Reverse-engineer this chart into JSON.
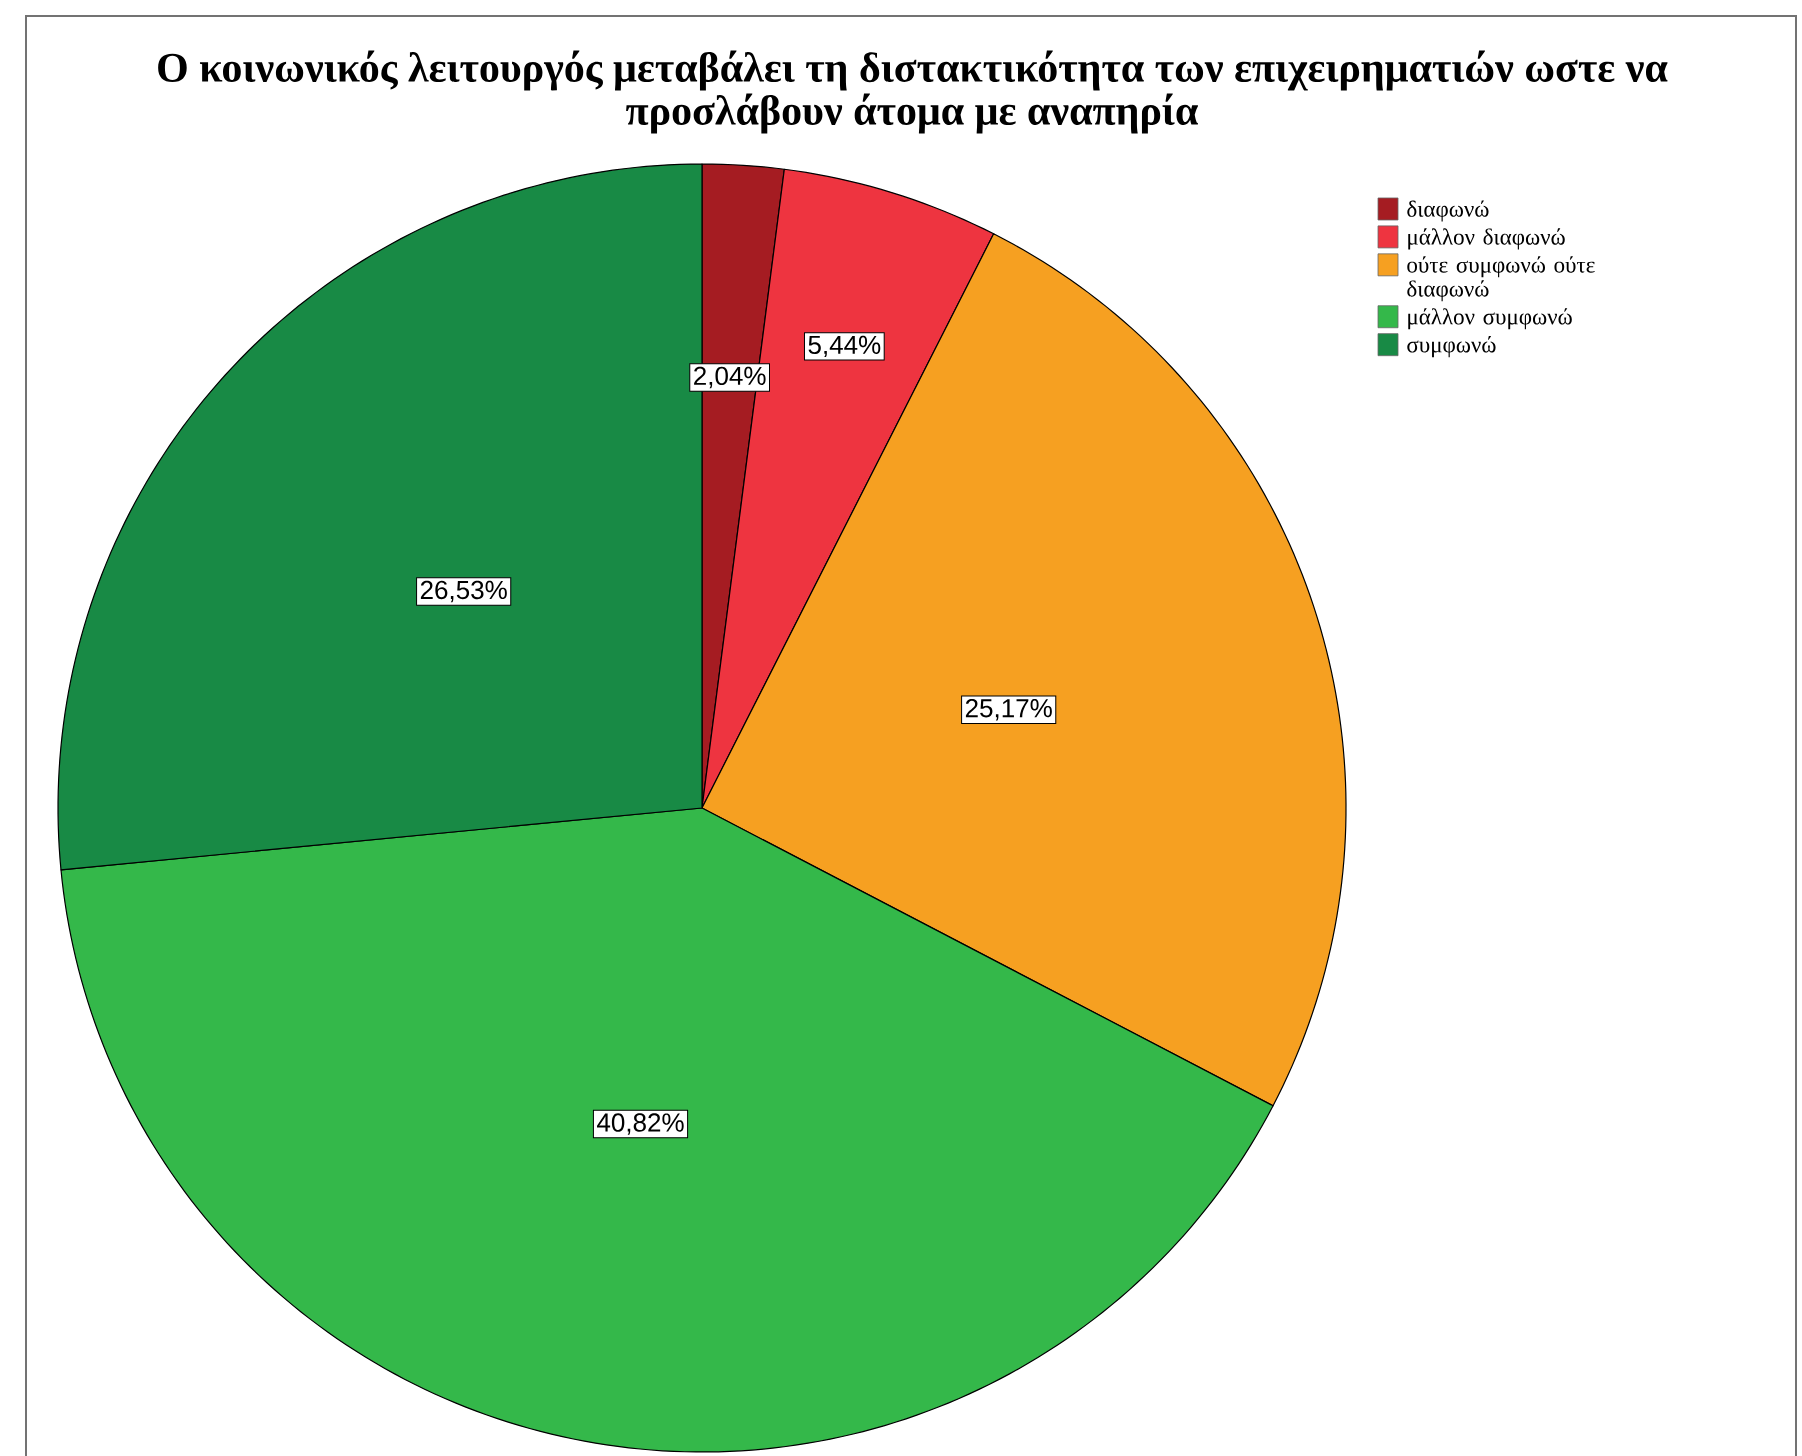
{
  "chart_data": {
    "type": "pie",
    "title": "Ο κοινωνικός λειτουργός μεταβάλει τη διστακτικότητα των επιχειρηματιών ωστε να προσλάβουν άτομα με αναπηρία",
    "categories": [
      "διαφωνώ",
      "μάλλον διαφωνώ",
      "ούτε συμφωνώ ούτε διαφωνώ",
      "μάλλον συμφωνώ",
      "συμφωνώ"
    ],
    "values": [
      2.04,
      5.44,
      25.17,
      40.82,
      26.53
    ],
    "colors": [
      "#a51c22",
      "#ee3440",
      "#f6a021",
      "#34b84a",
      "#188a45"
    ],
    "value_labels": [
      "2,04%",
      "5,44%",
      "25,17%",
      "40,82%",
      "26,53%"
    ],
    "legend": "top right"
  }
}
